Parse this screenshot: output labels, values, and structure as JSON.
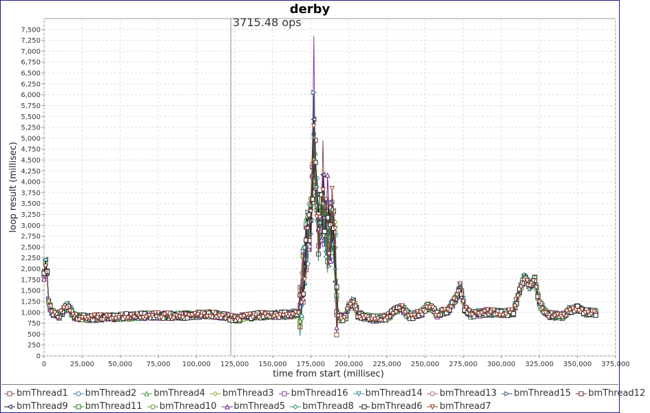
{
  "chart_data": {
    "type": "line",
    "title": "derby",
    "xlabel": "time from start (millisec)",
    "ylabel": "loop result (millisec)",
    "xlim": [
      0,
      375000
    ],
    "ylim": [
      0,
      7750
    ],
    "x_ticks": [
      0,
      25000,
      50000,
      75000,
      100000,
      125000,
      150000,
      175000,
      200000,
      225000,
      250000,
      275000,
      300000,
      325000,
      350000,
      375000
    ],
    "y_ticks": [
      0,
      250,
      500,
      750,
      1000,
      1250,
      1500,
      1750,
      2000,
      2250,
      2500,
      2750,
      3000,
      3250,
      3500,
      3750,
      4000,
      4250,
      4500,
      4750,
      5000,
      5250,
      5500,
      5750,
      6000,
      6250,
      6500,
      6750,
      7000,
      7250,
      7500
    ],
    "grid": true,
    "legend_position": "bottom",
    "marker_line": {
      "x": 122500,
      "label": "3715.48 ops"
    },
    "profile": [
      [
        0,
        1900
      ],
      [
        1500,
        2250
      ],
      [
        3000,
        1250
      ],
      [
        5000,
        1000
      ],
      [
        10000,
        920
      ],
      [
        15000,
        1150
      ],
      [
        20000,
        900
      ],
      [
        30000,
        870
      ],
      [
        50000,
        900
      ],
      [
        70000,
        930
      ],
      [
        90000,
        920
      ],
      [
        110000,
        960
      ],
      [
        120000,
        900
      ],
      [
        125000,
        850
      ],
      [
        140000,
        930
      ],
      [
        160000,
        950
      ],
      [
        168000,
        980
      ],
      [
        170000,
        1800
      ],
      [
        172000,
        2500
      ],
      [
        175000,
        3000
      ],
      [
        177000,
        5000
      ],
      [
        180000,
        2800
      ],
      [
        183000,
        3500
      ],
      [
        186000,
        2600
      ],
      [
        189000,
        3000
      ],
      [
        191000,
        2400
      ],
      [
        192000,
        1000
      ],
      [
        195000,
        850
      ],
      [
        198000,
        900
      ],
      [
        200000,
        1150
      ],
      [
        203000,
        1250
      ],
      [
        206000,
        950
      ],
      [
        215000,
        850
      ],
      [
        225000,
        880
      ],
      [
        230000,
        1050
      ],
      [
        235000,
        1100
      ],
      [
        240000,
        900
      ],
      [
        248000,
        1000
      ],
      [
        252000,
        1150
      ],
      [
        258000,
        950
      ],
      [
        265000,
        1050
      ],
      [
        270000,
        1300
      ],
      [
        273000,
        1600
      ],
      [
        276000,
        1100
      ],
      [
        280000,
        950
      ],
      [
        290000,
        1000
      ],
      [
        300000,
        980
      ],
      [
        308000,
        1000
      ],
      [
        312000,
        1500
      ],
      [
        315000,
        1800
      ],
      [
        319000,
        1600
      ],
      [
        322000,
        1750
      ],
      [
        325000,
        1200
      ],
      [
        330000,
        950
      ],
      [
        340000,
        900
      ],
      [
        345000,
        1050
      ],
      [
        350000,
        1100
      ],
      [
        355000,
        1000
      ],
      [
        362000,
        980
      ]
    ],
    "series": [
      {
        "name": "bmThread1",
        "color": "#8c4a4a",
        "marker": "square",
        "peak": [
          183000,
          4950
        ]
      },
      {
        "name": "bmThread2",
        "color": "#2e7fa8",
        "marker": "circle",
        "peak": [
          186000,
          3650
        ]
      },
      {
        "name": "bmThread4",
        "color": "#3a9a3a",
        "marker": "triangle-up",
        "peak": [
          180000,
          3300
        ]
      },
      {
        "name": "bmThread3",
        "color": "#8aa82a",
        "marker": "diamond",
        "peak": [
          185000,
          3500
        ]
      },
      {
        "name": "bmThread16",
        "color": "#8a3aa0",
        "marker": "square",
        "peak": [
          177000,
          7350
        ]
      },
      {
        "name": "bmThread14",
        "color": "#2a8a9a",
        "marker": "triangle-down",
        "peak": [
          181000,
          3200
        ]
      },
      {
        "name": "bmThread13",
        "color": "#a06a6a",
        "marker": "circle",
        "peak": [
          184000,
          3100
        ]
      },
      {
        "name": "bmThread15",
        "color": "#3a5a7a",
        "marker": "triangle-right",
        "peak": [
          177000,
          6050
        ]
      },
      {
        "name": "bmThread12",
        "color": "#6a2a2a",
        "marker": "square",
        "peak": [
          188000,
          3400
        ]
      },
      {
        "name": "bmThread9",
        "color": "#1a1a3a",
        "marker": "triangle-left",
        "peak": [
          173000,
          3050
        ]
      },
      {
        "name": "bmThread11",
        "color": "#1a7a1a",
        "marker": "square",
        "peak": [
          187000,
          3300
        ]
      },
      {
        "name": "bmThread10",
        "color": "#5a8a1a",
        "marker": "circle",
        "peak": [
          182000,
          3300
        ]
      },
      {
        "name": "bmThread5",
        "color": "#6a1a8a",
        "marker": "triangle-up",
        "peak": [
          186000,
          4150
        ]
      },
      {
        "name": "bmThread8",
        "color": "#1a8a7a",
        "marker": "diamond",
        "peak": [
          183000,
          3500
        ]
      },
      {
        "name": "bmThread6",
        "color": "#222222",
        "marker": "square",
        "peak": [
          176000,
          3600
        ]
      },
      {
        "name": "bmThread7",
        "color": "#8a3a2a",
        "marker": "triangle-down",
        "peak": [
          189000,
          3850
        ]
      }
    ]
  }
}
